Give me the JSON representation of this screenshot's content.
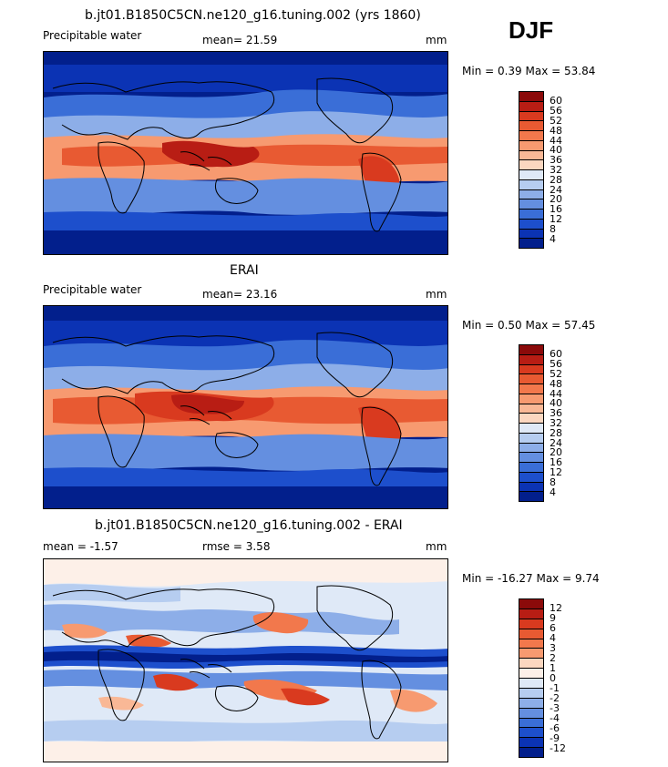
{
  "season": "DJF",
  "panels": [
    {
      "title": "b.jt01.B1850C5CN.ne120_g16.tuning.002 (yrs 1860)",
      "variable": "Precipitable water",
      "stat_text": "mean=  21.59",
      "units": "mm",
      "minmax": "Min =   0.39 Max =  53.84",
      "colorbar": {
        "labels": [
          "60",
          "56",
          "52",
          "48",
          "44",
          "40",
          "36",
          "32",
          "28",
          "24",
          "20",
          "16",
          "12",
          "8",
          "4"
        ],
        "colors": [
          "#8b0a0a",
          "#b81d14",
          "#d93a1f",
          "#e85a32",
          "#f2784c",
          "#f79a70",
          "#f9b896",
          "#fbd7c0",
          "#dfe9f7",
          "#b6cdf0",
          "#8daee8",
          "#648fe0",
          "#3a6ed7",
          "#1d4fcc",
          "#0b33b4",
          "#021f8c"
        ]
      }
    },
    {
      "title": "ERAI",
      "variable": "Precipitable water",
      "stat_text": "mean=  23.16",
      "units": "mm",
      "minmax": "Min =   0.50 Max =  57.45",
      "colorbar": {
        "labels": [
          "60",
          "56",
          "52",
          "48",
          "44",
          "40",
          "36",
          "32",
          "28",
          "24",
          "20",
          "16",
          "12",
          "8",
          "4"
        ],
        "colors": [
          "#8b0a0a",
          "#b81d14",
          "#d93a1f",
          "#e85a32",
          "#f2784c",
          "#f79a70",
          "#f9b896",
          "#fbd7c0",
          "#dfe9f7",
          "#b6cdf0",
          "#8daee8",
          "#648fe0",
          "#3a6ed7",
          "#1d4fcc",
          "#0b33b4",
          "#021f8c"
        ]
      }
    },
    {
      "title": "b.jt01.B1850C5CN.ne120_g16.tuning.002 - ERAI",
      "stat_mean": "mean =  -1.57",
      "stat_rmse": "rmse =   3.58",
      "units": "mm",
      "minmax": "Min = -16.27 Max =   9.74",
      "colorbar": {
        "labels": [
          "12",
          "9",
          "6",
          "4",
          "3",
          "2",
          "1",
          "0",
          "-1",
          "-2",
          "-3",
          "-4",
          "-6",
          "-9",
          "-12"
        ],
        "colors": [
          "#8b0a0a",
          "#b81d14",
          "#d93a1f",
          "#e85a32",
          "#f2784c",
          "#f79a70",
          "#fbd7c0",
          "#fdf0e8",
          "#dfe9f7",
          "#b6cdf0",
          "#8daee8",
          "#648fe0",
          "#3a6ed7",
          "#1d4fcc",
          "#0b33b4",
          "#021f8c"
        ]
      }
    }
  ]
}
